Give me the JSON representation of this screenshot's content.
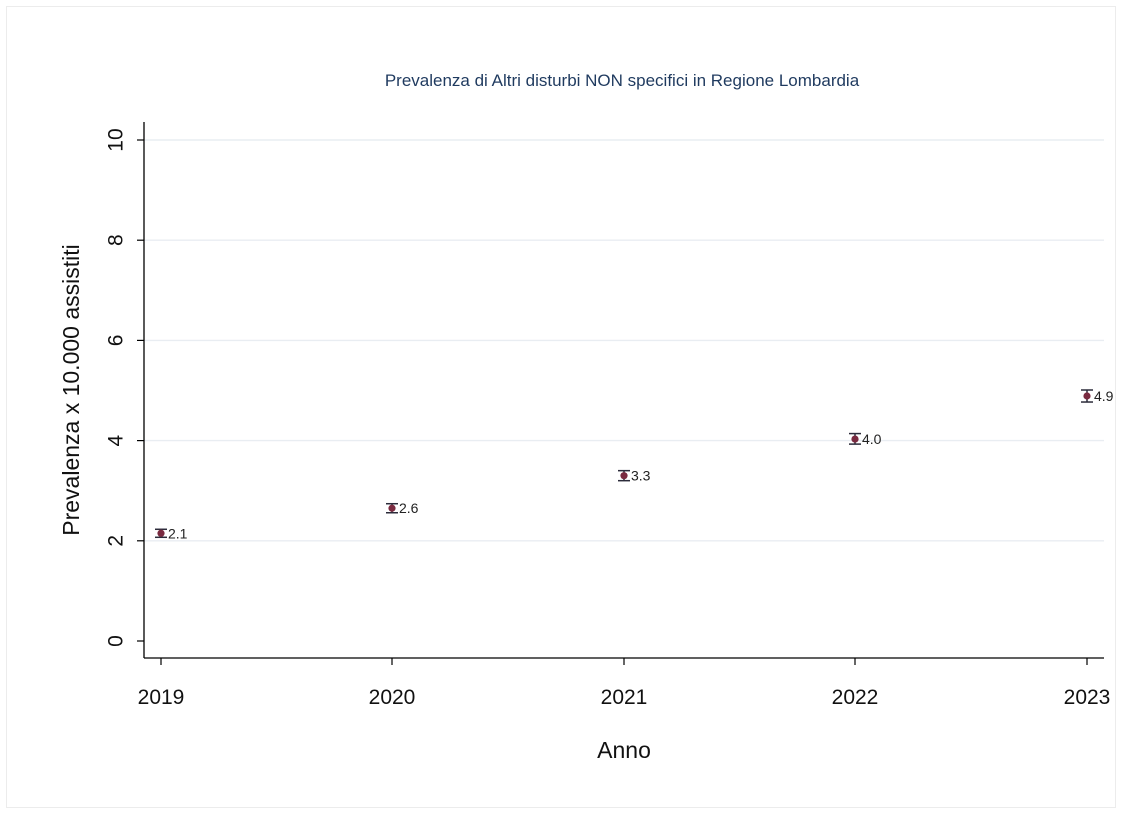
{
  "chart_data": {
    "type": "scatter",
    "title": "Prevalenza di Altri disturbi NON specifici in Regione Lombardia",
    "xlabel": "Anno",
    "ylabel": "Prevalenza x 10.000 assistiti",
    "categories": [
      "2019",
      "2020",
      "2021",
      "2022",
      "2023"
    ],
    "values": [
      2.15,
      2.65,
      3.3,
      4.03,
      4.89
    ],
    "ci_lower": [
      2.07,
      2.56,
      3.2,
      3.93,
      4.77
    ],
    "ci_upper": [
      2.23,
      2.74,
      3.4,
      4.14,
      5.01
    ],
    "data_labels": [
      "2.1",
      "2.6",
      "3.3",
      "4.0",
      "4.9"
    ],
    "ylim": [
      0,
      10
    ],
    "yticks": [
      "0",
      "2",
      "4",
      "6",
      "8",
      "10"
    ],
    "grid": true,
    "colors": {
      "marker": "#7a2a40",
      "error_bar": "#2b2b3a",
      "title": "#1f3a5f",
      "grid": "#e9edf2",
      "axis": "#000000"
    }
  }
}
